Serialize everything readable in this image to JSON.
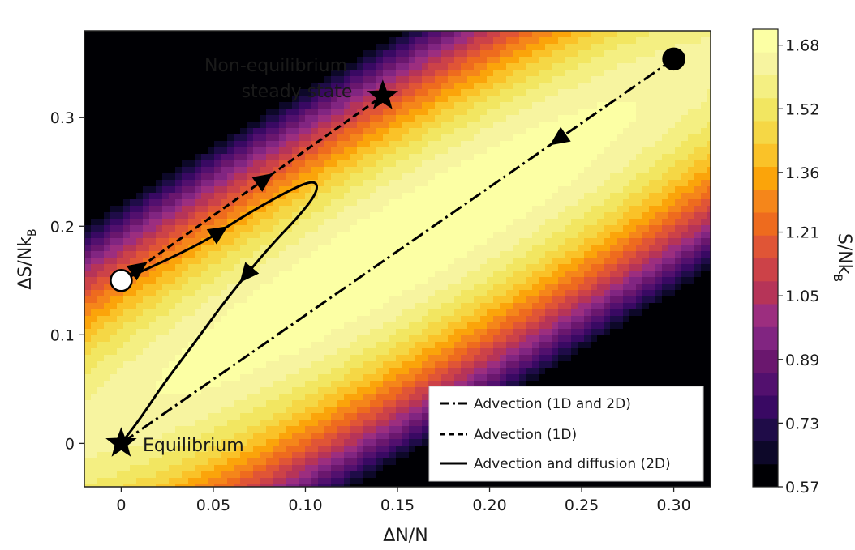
{
  "chart_data": {
    "type": "contour",
    "xlabel": "ΔN/N",
    "ylabel": "ΔS/Nk",
    "ylabel_sub": "B",
    "xlim": [
      -0.02,
      0.32
    ],
    "ylim": [
      -0.04,
      0.38
    ],
    "xticks": [
      {
        "value": 0,
        "label": "0"
      },
      {
        "value": 0.05,
        "label": "0.05"
      },
      {
        "value": 0.1,
        "label": "0.10"
      },
      {
        "value": 0.15,
        "label": "0.15"
      },
      {
        "value": 0.2,
        "label": "0.20"
      },
      {
        "value": 0.25,
        "label": "0.25"
      },
      {
        "value": 0.3,
        "label": "0.30"
      }
    ],
    "yticks": [
      {
        "value": 0,
        "label": "0"
      },
      {
        "value": 0.1,
        "label": "0.1"
      },
      {
        "value": 0.2,
        "label": "0.2"
      },
      {
        "value": 0.3,
        "label": "0.3"
      }
    ],
    "colorbar": {
      "label": "S/Nk",
      "label_sub": "B",
      "range": [
        0.57,
        1.72
      ],
      "ticks": [
        {
          "value": 0.57,
          "label": "0.57"
        },
        {
          "value": 0.73,
          "label": "0.73"
        },
        {
          "value": 0.89,
          "label": "0.89"
        },
        {
          "value": 1.05,
          "label": "1.05"
        },
        {
          "value": 1.21,
          "label": "1.21"
        },
        {
          "value": 1.36,
          "label": "1.36"
        },
        {
          "value": 1.52,
          "label": "1.52"
        },
        {
          "value": 1.68,
          "label": "1.68"
        }
      ],
      "levels": 22,
      "colors": [
        "#000004",
        "#0d0829",
        "#1f0c48",
        "#390963",
        "#52106e",
        "#6a176e",
        "#812581",
        "#9c2e7f",
        "#b63458",
        "#cc4248",
        "#e05536",
        "#ee6b1e",
        "#f5861a",
        "#fba40a",
        "#fac228",
        "#f5d745",
        "#f2e661",
        "#f4ef82",
        "#f7f4a0",
        "#fcffa4"
      ]
    },
    "contour_field": {
      "peak_value": 1.72,
      "ridge_point": [
        0.15,
        0.18
      ],
      "ridge_slope": 1.05,
      "decay_across": 7.1,
      "decay_along": 1.2
    },
    "series": [
      {
        "name": "Advection (1D and 2D)",
        "style": "dash-dot",
        "points": [
          [
            0.3,
            0.354
          ],
          [
            0.0,
            0.0
          ]
        ],
        "arrows": [
          {
            "at": 0.21,
            "direction": "toward-end"
          }
        ]
      },
      {
        "name": "Advection (1D)",
        "style": "dashed",
        "points": [
          [
            0.0,
            0.15
          ],
          [
            0.142,
            0.32
          ]
        ],
        "arrows": [
          {
            "at": 0.07,
            "direction": "toward-end"
          },
          {
            "at": 0.55,
            "direction": "toward-end"
          }
        ]
      },
      {
        "name": "Advection and diffusion (2D)",
        "style": "solid",
        "points": [
          [
            0.0,
            0.15
          ],
          [
            0.04,
            0.18
          ],
          [
            0.065,
            0.208
          ],
          [
            0.09,
            0.232
          ],
          [
            0.105,
            0.243
          ],
          [
            0.107,
            0.233
          ],
          [
            0.098,
            0.212
          ],
          [
            0.08,
            0.18
          ],
          [
            0.058,
            0.135
          ],
          [
            0.04,
            0.093
          ],
          [
            0.023,
            0.055
          ],
          [
            0.01,
            0.022
          ],
          [
            0.0,
            0.0
          ]
        ],
        "arrows": [
          {
            "at": 0.2,
            "direction": "toward-end"
          },
          {
            "at": 0.62,
            "direction": "toward-end"
          }
        ]
      }
    ],
    "markers": [
      {
        "name": "start-filled-circle",
        "x": 0.3,
        "y": 0.354,
        "shape": "circle",
        "fill": "#000000"
      },
      {
        "name": "start-open-circle",
        "x": 0.0,
        "y": 0.15,
        "shape": "circle",
        "fill": "#ffffff"
      },
      {
        "name": "nonequilibrium-star",
        "x": 0.142,
        "y": 0.32,
        "shape": "star",
        "fill": "#000000"
      },
      {
        "name": "equilibrium-star",
        "x": 0.0,
        "y": 0.0,
        "shape": "star",
        "fill": "#000000"
      }
    ],
    "annotations": {
      "nonequilibrium_line1": "Non-equilibrium",
      "nonequilibrium_line2": "steady state",
      "equilibrium": "Equilibrium"
    },
    "legend": {
      "position": "lower-right",
      "entries": [
        {
          "label": "Advection (1D and 2D)",
          "style": "dash-dot"
        },
        {
          "label": "Advection (1D)",
          "style": "dashed"
        },
        {
          "label": "Advection and diffusion (2D)",
          "style": "solid"
        }
      ]
    }
  }
}
